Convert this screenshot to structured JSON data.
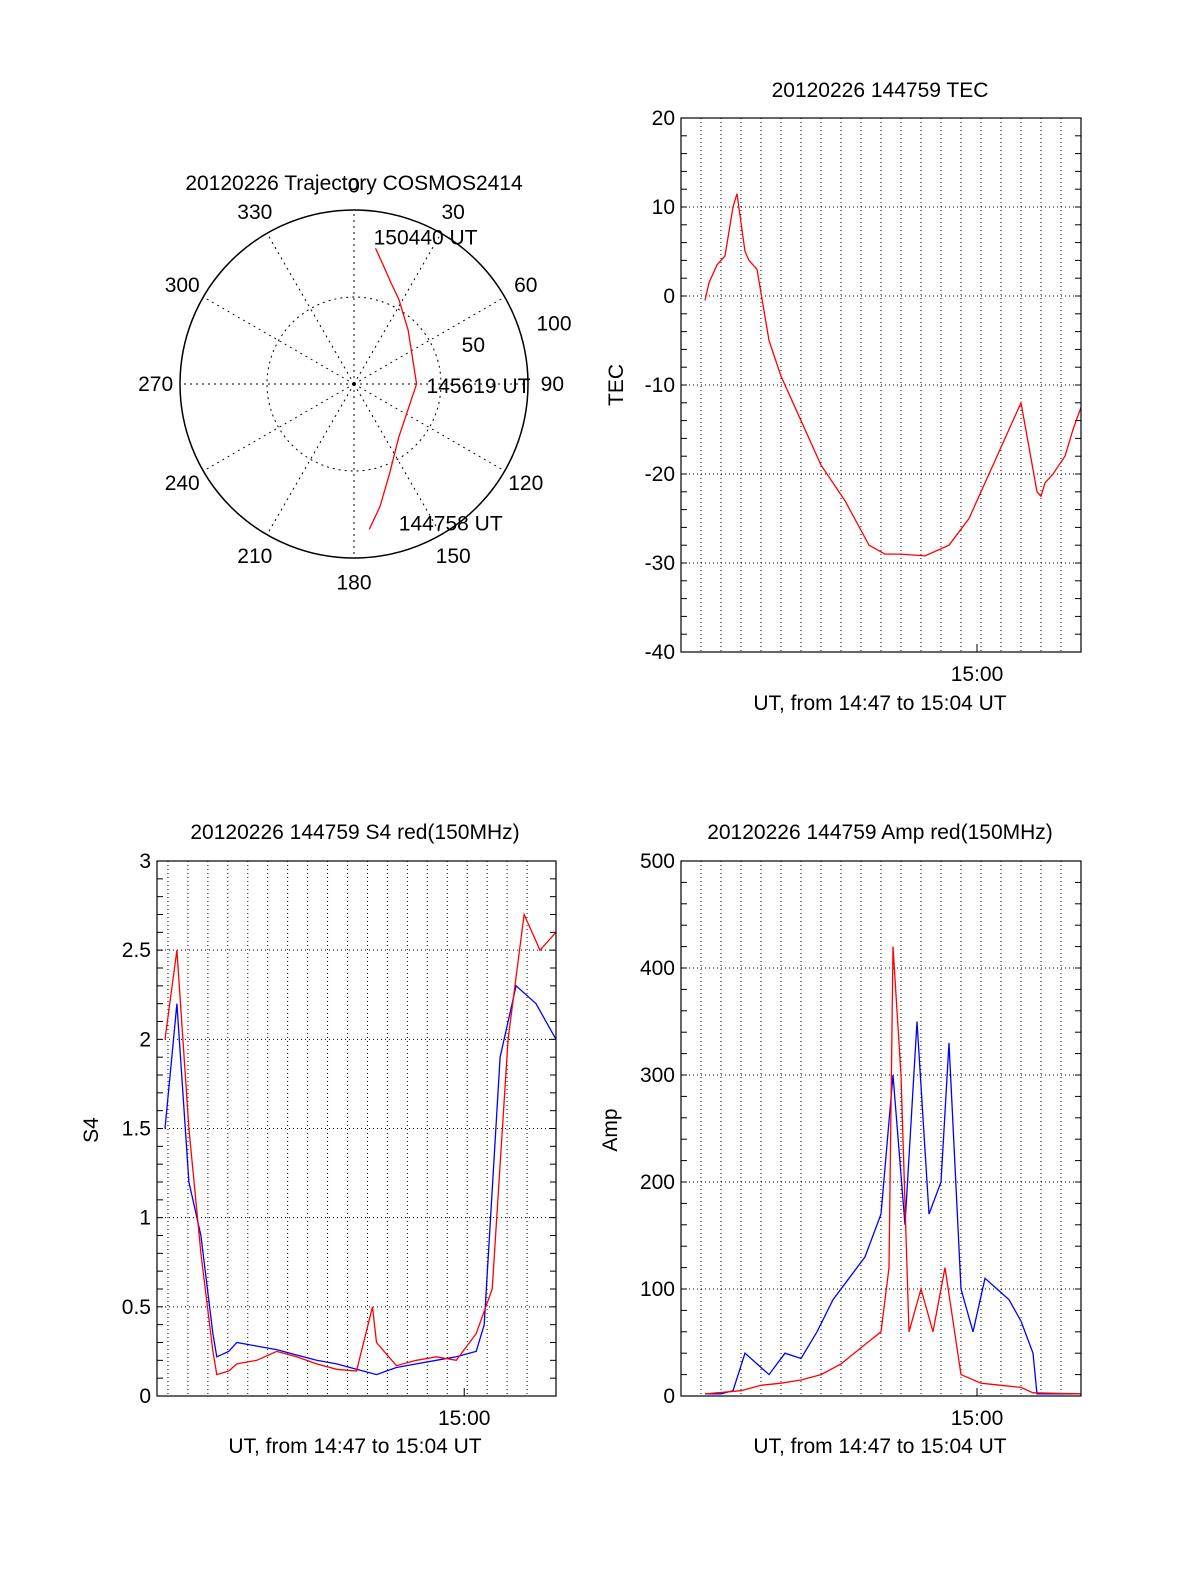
{
  "colors": {
    "red": "#ff0000",
    "blue": "#0000ff",
    "axis": "#000000",
    "grid": "#000000"
  },
  "chart_data": [
    {
      "type": "polar",
      "title": "20120226 Trajectory COSMOS2414",
      "angle_labels": [
        "0",
        "30",
        "60",
        "90",
        "120",
        "150",
        "180",
        "210",
        "240",
        "270",
        "300",
        "330"
      ],
      "angles": [
        0,
        30,
        60,
        90,
        120,
        150,
        180,
        210,
        240,
        270,
        300,
        330
      ],
      "radial_labels": [
        "50",
        "100"
      ],
      "radial_values": [
        50,
        100
      ],
      "rlim": [
        0,
        100
      ],
      "grid": true,
      "trajectory": {
        "color": "red",
        "points": [
          [
            9,
            79
          ],
          [
            14,
            70
          ],
          [
            20,
            62
          ],
          [
            28,
            55
          ],
          [
            45,
            44
          ],
          [
            90,
            36
          ],
          [
            140,
            40
          ],
          [
            158,
            55
          ],
          [
            168,
            72
          ],
          [
            174,
            84
          ]
        ]
      },
      "annotations": [
        {
          "text": "150440 UT",
          "azimuth": 8,
          "r": 81
        },
        {
          "text": "145619 UT",
          "azimuth": 97,
          "r": 42
        },
        {
          "text": "144758 UT",
          "azimuth": 163,
          "r": 88
        }
      ]
    },
    {
      "type": "line",
      "title": "20120226 144759 TEC",
      "ylabel": "TEC",
      "xlabel": "UT, from 14:47 to 15:04 UT",
      "ylim": [
        -40,
        20
      ],
      "yticks": [
        "20",
        "10",
        "0",
        "-10",
        "-20",
        "-30",
        "-40"
      ],
      "yticks_values": [
        20,
        10,
        0,
        -10,
        -20,
        -30,
        -40
      ],
      "xlim": [
        0,
        1
      ],
      "xtick_label": "15:00",
      "xtick_value": 0.74,
      "grid": true,
      "series": [
        {
          "color": "red",
          "x": [
            0.06,
            0.07,
            0.09,
            0.11,
            0.13,
            0.14,
            0.16,
            0.17,
            0.19,
            0.22,
            0.25,
            0.29,
            0.35,
            0.41,
            0.47,
            0.51,
            0.55,
            0.61,
            0.67,
            0.72,
            0.77,
            0.81,
            0.85,
            0.87,
            0.89,
            0.9,
            0.91,
            0.93,
            0.96,
            0.98,
            1.0
          ],
          "y": [
            -0.5,
            1.5,
            3.5,
            4.5,
            10,
            11.5,
            5,
            4,
            3,
            -5,
            -9,
            -13,
            -19,
            -23,
            -28,
            -29,
            -29,
            -29.2,
            -28,
            -25,
            -20,
            -16,
            -12,
            -17,
            -22,
            -22.5,
            -21,
            -20,
            -18,
            -15,
            -12.5
          ]
        }
      ]
    },
    {
      "type": "line",
      "title": "20120226 144759 S4 red(150MHz)",
      "ylabel": "S4",
      "xlabel": "UT, from 14:47 to 15:04 UT",
      "ylim": [
        0,
        3
      ],
      "yticks": [
        "3",
        "2.5",
        "2",
        "1.5",
        "1",
        "0.5",
        "0"
      ],
      "yticks_values": [
        3,
        2.5,
        2,
        1.5,
        1,
        0.5,
        0
      ],
      "xlim": [
        0,
        1
      ],
      "xtick_label": "15:00",
      "xtick_value": 0.77,
      "grid": true,
      "series": [
        {
          "color": "blue",
          "x": [
            0.02,
            0.05,
            0.08,
            0.11,
            0.14,
            0.15,
            0.18,
            0.2,
            0.25,
            0.3,
            0.35,
            0.4,
            0.45,
            0.5,
            0.55,
            0.6,
            0.65,
            0.7,
            0.75,
            0.8,
            0.82,
            0.86,
            0.9,
            0.95,
            1.0
          ],
          "y": [
            1.5,
            2.2,
            1.2,
            0.9,
            0.35,
            0.22,
            0.25,
            0.3,
            0.28,
            0.26,
            0.23,
            0.2,
            0.18,
            0.15,
            0.12,
            0.16,
            0.18,
            0.2,
            0.22,
            0.25,
            0.4,
            1.9,
            2.3,
            2.2,
            2.0
          ]
        },
        {
          "color": "red",
          "x": [
            0.02,
            0.05,
            0.08,
            0.11,
            0.14,
            0.15,
            0.18,
            0.2,
            0.25,
            0.3,
            0.35,
            0.4,
            0.45,
            0.5,
            0.54,
            0.55,
            0.6,
            0.65,
            0.7,
            0.75,
            0.8,
            0.84,
            0.88,
            0.92,
            0.96,
            1.0
          ],
          "y": [
            2.0,
            2.5,
            1.5,
            0.8,
            0.25,
            0.12,
            0.14,
            0.18,
            0.2,
            0.25,
            0.22,
            0.18,
            0.15,
            0.14,
            0.5,
            0.3,
            0.17,
            0.2,
            0.22,
            0.2,
            0.35,
            0.6,
            2.0,
            2.7,
            2.5,
            2.6
          ]
        }
      ]
    },
    {
      "type": "line",
      "title": "20120226 144759 Amp red(150MHz)",
      "ylabel": "Amp",
      "xlabel": "UT, from 14:47 to 15:04 UT",
      "ylim": [
        0,
        500
      ],
      "yticks": [
        "500",
        "400",
        "300",
        "200",
        "100",
        "0"
      ],
      "yticks_values": [
        500,
        400,
        300,
        200,
        100,
        0
      ],
      "xlim": [
        0,
        1
      ],
      "xtick_label": "15:00",
      "xtick_value": 0.74,
      "grid": true,
      "series": [
        {
          "color": "blue",
          "x": [
            0.06,
            0.1,
            0.13,
            0.16,
            0.19,
            0.22,
            0.26,
            0.3,
            0.34,
            0.38,
            0.42,
            0.46,
            0.5,
            0.53,
            0.56,
            0.59,
            0.62,
            0.65,
            0.67,
            0.7,
            0.73,
            0.76,
            0.79,
            0.82,
            0.85,
            0.88,
            0.89,
            0.92,
            1.0
          ],
          "y": [
            2,
            2,
            5,
            40,
            30,
            20,
            40,
            35,
            60,
            90,
            110,
            130,
            170,
            300,
            160,
            350,
            170,
            200,
            330,
            100,
            60,
            110,
            100,
            90,
            70,
            40,
            2,
            2,
            2
          ]
        },
        {
          "color": "red",
          "x": [
            0.06,
            0.15,
            0.2,
            0.25,
            0.3,
            0.35,
            0.4,
            0.45,
            0.5,
            0.52,
            0.53,
            0.55,
            0.57,
            0.6,
            0.63,
            0.66,
            0.7,
            0.75,
            0.8,
            0.85,
            0.88,
            1.0
          ],
          "y": [
            2,
            5,
            10,
            12,
            15,
            20,
            30,
            45,
            60,
            120,
            420,
            300,
            60,
            100,
            60,
            120,
            20,
            12,
            10,
            8,
            3,
            2
          ]
        }
      ]
    }
  ]
}
